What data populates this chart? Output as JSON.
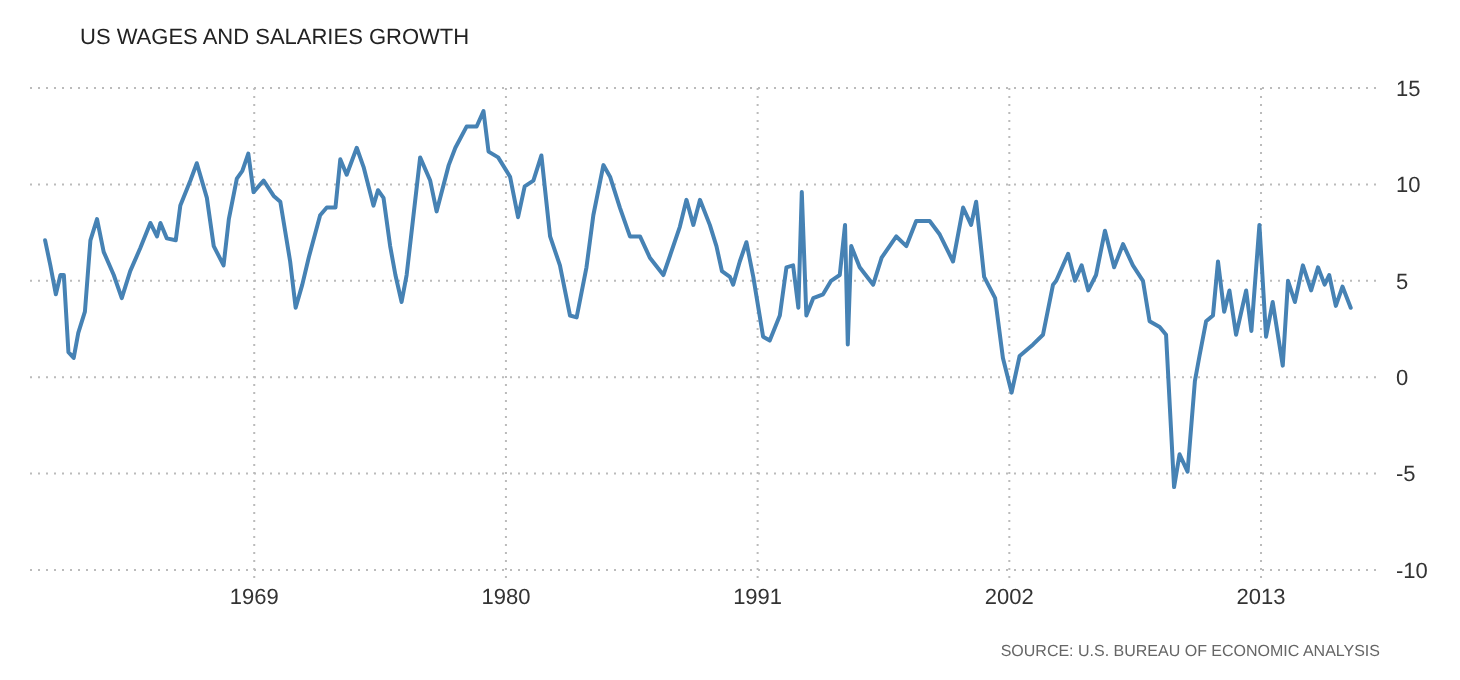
{
  "chart_data": {
    "type": "line",
    "title": "US WAGES AND SALARIES GROWTH",
    "annotations": [
      "SOURCE: U.S. BUREAU OF ECONOMIC ANALYSIS"
    ],
    "x": [
      1959.86,
      1960.09,
      1960.33,
      1960.53,
      1960.68,
      1960.88,
      1961.11,
      1961.31,
      1961.6,
      1961.84,
      1962.13,
      1962.42,
      1962.86,
      1963.21,
      1963.58,
      1964.02,
      1964.46,
      1964.75,
      1964.9,
      1965.18,
      1965.57,
      1965.77,
      1966.21,
      1966.49,
      1966.93,
      1967.23,
      1967.66,
      1967.89,
      1968.24,
      1968.48,
      1968.74,
      1968.97,
      1969.41,
      1969.85,
      1970.14,
      1970.57,
      1970.81,
      1971.1,
      1971.38,
      1971.88,
      1972.17,
      1972.55,
      1972.76,
      1973.04,
      1973.48,
      1973.78,
      1974.21,
      1974.41,
      1974.65,
      1974.94,
      1975.17,
      1975.44,
      1975.66,
      1975.96,
      1976.25,
      1976.69,
      1976.97,
      1977.5,
      1977.79,
      1978.28,
      1978.72,
      1979.02,
      1979.24,
      1979.66,
      1980.18,
      1980.53,
      1980.82,
      1981.2,
      1981.55,
      1981.93,
      1982.36,
      1982.8,
      1983.09,
      1983.52,
      1983.82,
      1984.26,
      1984.55,
      1984.98,
      1985.42,
      1985.86,
      1986.29,
      1986.88,
      1987.17,
      1987.6,
      1987.89,
      1988.19,
      1988.48,
      1988.91,
      1989.2,
      1989.44,
      1989.79,
      1989.93,
      1990.22,
      1990.51,
      1990.81,
      1991.24,
      1991.53,
      1991.97,
      1992.26,
      1992.55,
      1992.78,
      1992.93,
      1993.13,
      1993.43,
      1993.86,
      1994.21,
      1994.59,
      1994.82,
      1994.94,
      1995.09,
      1995.46,
      1996.05,
      1996.42,
      1997.06,
      1997.5,
      1997.93,
      1998.52,
      1998.96,
      1999.54,
      1999.98,
      2000.33,
      2000.55,
      2000.9,
      2001.38,
      2001.72,
      2002.1,
      2002.45,
      2003.04,
      2003.47,
      2003.91,
      2004.05,
      2004.57,
      2004.87,
      2005.16,
      2005.45,
      2005.79,
      2006.18,
      2006.58,
      2006.97,
      2007.4,
      2007.84,
      2008.13,
      2008.57,
      2008.85,
      2009.2,
      2009.44,
      2009.79,
      2010.11,
      2010.31,
      2010.6,
      2010.9,
      2011.12,
      2011.39,
      2011.62,
      2011.91,
      2012.35,
      2012.58,
      2012.93,
      2013.22,
      2013.51,
      2013.95,
      2014.18,
      2014.48,
      2014.83,
      2015.19,
      2015.49,
      2015.78,
      2015.98,
      2016.27,
      2016.56,
      2016.92
    ],
    "series": [
      {
        "color": "#4682b4",
        "values": [
          7.1,
          5.8,
          4.3,
          5.3,
          5.3,
          1.3,
          1.0,
          2.3,
          3.4,
          7.1,
          8.2,
          6.5,
          5.3,
          4.1,
          5.5,
          6.7,
          8.0,
          7.3,
          8.0,
          7.2,
          7.1,
          8.9,
          10.2,
          11.1,
          9.3,
          6.8,
          5.8,
          8.2,
          10.3,
          10.7,
          11.6,
          9.6,
          10.2,
          9.4,
          9.1,
          6.0,
          3.6,
          4.8,
          6.2,
          8.4,
          8.8,
          8.8,
          11.3,
          10.5,
          11.9,
          10.9,
          8.9,
          9.7,
          9.3,
          6.8,
          5.3,
          3.9,
          5.3,
          8.4,
          11.4,
          10.2,
          8.6,
          11.0,
          11.9,
          13.0,
          13.0,
          13.8,
          11.7,
          11.4,
          10.4,
          8.3,
          9.9,
          10.2,
          11.5,
          7.3,
          5.8,
          3.2,
          3.1,
          5.7,
          8.4,
          11.0,
          10.4,
          8.8,
          7.3,
          7.3,
          6.2,
          5.3,
          6.3,
          7.8,
          9.2,
          7.9,
          9.2,
          7.9,
          6.8,
          5.5,
          5.2,
          4.8,
          6.0,
          7.0,
          5.2,
          2.1,
          1.9,
          3.2,
          5.7,
          5.8,
          3.6,
          9.6,
          3.2,
          4.1,
          4.3,
          5.0,
          5.3,
          7.9,
          1.7,
          6.8,
          5.7,
          4.8,
          6.2,
          7.3,
          6.8,
          8.1,
          8.1,
          7.4,
          6.0,
          8.8,
          7.9,
          9.1,
          5.2,
          4.1,
          1.0,
          -0.8,
          1.1,
          1.7,
          2.2,
          4.8,
          5.0,
          6.4,
          5.0,
          5.8,
          4.5,
          5.3,
          7.6,
          5.7,
          6.9,
          5.8,
          5.0,
          2.9,
          2.6,
          2.2,
          -5.7,
          -4.0,
          -4.9,
          -0.2,
          1.1,
          2.9,
          3.2,
          6.0,
          3.4,
          4.5,
          2.2,
          4.5,
          2.4,
          7.9,
          2.1,
          3.9,
          0.6,
          5.0,
          3.9,
          5.8,
          4.5,
          5.7,
          4.8,
          5.3,
          3.7,
          4.7,
          3.6
        ]
      }
    ],
    "xlim": [
      1959.2,
      2018.2
    ],
    "xticks": [
      1969,
      1980,
      1991,
      2002,
      2013
    ],
    "ylim": [
      -10,
      15
    ],
    "yticks": [
      15,
      10,
      5,
      0,
      -5,
      -10
    ],
    "grid": true,
    "marker": "none",
    "line_style": "solid"
  }
}
